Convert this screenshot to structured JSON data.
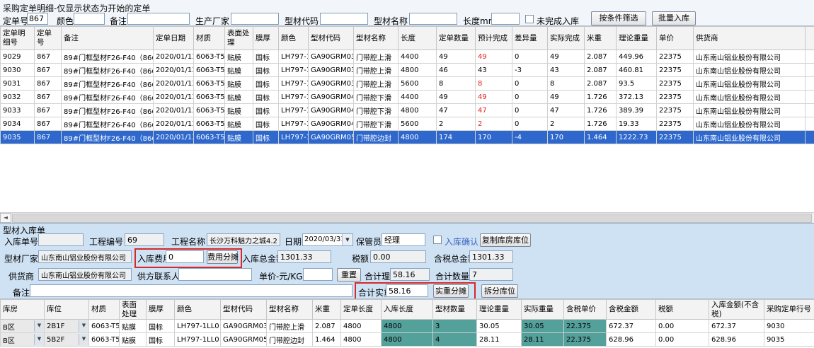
{
  "title": "采购定单明细-仅显示状态为开始的定单",
  "icons": {
    "dropdown": "▼",
    "scroll_left": "◄"
  },
  "filter": {
    "fields": [
      {
        "label": "定单号",
        "value": "867"
      },
      {
        "label": "颜色",
        "value": ""
      },
      {
        "label": "备注",
        "value": ""
      },
      {
        "label": "生产厂家",
        "value": ""
      },
      {
        "label": "型材代码",
        "value": ""
      },
      {
        "label": "型材名称",
        "value": ""
      },
      {
        "label": "长度mm",
        "value": ""
      }
    ],
    "unfinished_checkbox": "未完成入库",
    "filter_button": "按条件筛选",
    "batch_button": "批量入库"
  },
  "order_grid": {
    "columns": [
      "定单明细号",
      "定单号",
      "备注",
      "定单日期",
      "材质",
      "表面处理",
      "膜厚",
      "颜色",
      "型材代码",
      "型材名称",
      "长度",
      "定单数量",
      "预计完成",
      "差异量",
      "实际完成",
      "米重",
      "理论重量",
      "单价",
      "供货商",
      ""
    ],
    "widths": [
      48,
      38,
      130,
      57,
      44,
      40,
      36,
      42,
      64,
      63,
      54,
      55,
      52,
      50,
      52,
      45,
      57,
      52,
      158,
      13
    ],
    "selected_row": 6,
    "red_cells": {
      "column": 12,
      "rows": [
        0,
        2,
        3,
        4,
        5
      ]
    },
    "rows": [
      [
        "9029",
        "867",
        "89#门框型材F26-F40（866+867）",
        "2020/01/13",
        "6063-T5",
        "贴膜",
        "国标",
        "LH797-1LL0",
        "GA90GRM03",
        "门带腔上滑",
        "4400",
        "49",
        "49",
        "0",
        "49",
        "2.087",
        "449.96",
        "22375",
        "山东南山铝业股份有限公司",
        ""
      ],
      [
        "9030",
        "867",
        "89#门框型材F26-F40（866+867）",
        "2020/01/13",
        "6063-T5",
        "贴膜",
        "国标",
        "LH797-1LL0",
        "GA90GRM03",
        "门带腔上滑",
        "4800",
        "46",
        "43",
        "-3",
        "43",
        "2.087",
        "460.81",
        "22375",
        "山东南山铝业股份有限公司",
        ""
      ],
      [
        "9031",
        "867",
        "89#门框型材F26-F40（866+867）",
        "2020/01/13",
        "6063-T5",
        "贴膜",
        "国标",
        "LH797-1LL0",
        "GA90GRM03",
        "门带腔上滑",
        "5600",
        "8",
        "8",
        "0",
        "8",
        "2.087",
        "93.5",
        "22375",
        "山东南山铝业股份有限公司",
        ""
      ],
      [
        "9032",
        "867",
        "89#门框型材F26-F40（866+867）",
        "2020/01/13",
        "6063-T5",
        "贴膜",
        "国标",
        "LH797-1LL0",
        "GA90GRM04",
        "门带腔下滑",
        "4400",
        "49",
        "49",
        "0",
        "49",
        "1.726",
        "372.13",
        "22375",
        "山东南山铝业股份有限公司",
        ""
      ],
      [
        "9033",
        "867",
        "89#门框型材F26-F40（866+867）",
        "2020/01/13",
        "6063-T5",
        "贴膜",
        "国标",
        "LH797-1LL0",
        "GA90GRM04",
        "门带腔下滑",
        "4800",
        "47",
        "47",
        "0",
        "47",
        "1.726",
        "389.39",
        "22375",
        "山东南山铝业股份有限公司",
        ""
      ],
      [
        "9034",
        "867",
        "89#门框型材F26-F40（866+867）",
        "2020/01/13",
        "6063-T5",
        "贴膜",
        "国标",
        "LH797-1LL0",
        "GA90GRM04",
        "门带腔下滑",
        "5600",
        "2",
        "2",
        "0",
        "2",
        "1.726",
        "19.33",
        "22375",
        "山东南山铝业股份有限公司",
        ""
      ],
      [
        "9035",
        "867",
        "89#门框型材F26-F40（866+867）",
        "2020/01/13",
        "6063-T5",
        "贴膜",
        "国标",
        "LH797-1LL0",
        "GA90GRM05",
        "门带腔边封",
        "4800",
        "174",
        "170",
        "-4",
        "170",
        "1.464",
        "1222.73",
        "22375",
        "山东南山铝业股份有限公司",
        ""
      ]
    ]
  },
  "inbound_form": {
    "group_label": "型材入库单",
    "inbound_no_label": "入库单号",
    "inbound_no_value": "",
    "project_no_label": "工程编号",
    "project_no_value": "69",
    "project_name_label": "工程名称",
    "project_name_value": "长沙万科魅力之城4.2期",
    "date_label": "日期",
    "date_value": "2020/03/31",
    "keeper_label": "保管员",
    "keeper_value": "经理",
    "confirm_label": "入库确认",
    "copy_button": "复制库房库位",
    "factory_label": "型材厂家",
    "factory_value": "山东南山铝业股份有限公司",
    "fee_label": "入库费用",
    "fee_value": "0",
    "fee_button": "费用分摊",
    "total_label": "入库总金额",
    "total_value": "1301.33",
    "tax_label": "税额",
    "tax_value": "0.00",
    "tax_total_label": "含税总金额",
    "tax_total_value": "1301.33",
    "supplier_label": "供货商",
    "supplier_value": "山东南山铝业股份有限公司",
    "contact_label": "供方联系人",
    "contact_value": "",
    "price_label": "单价-元/KG",
    "price_value": "",
    "reset_button": "重置",
    "theory_label": "合计理重",
    "theory_value": "58.16",
    "qty_label": "合计数量",
    "qty_value": "7",
    "remark_label": "备注",
    "remark_value": "",
    "actual_label": "合计实重",
    "actual_value": "58.16",
    "actual_button": "实重分摊",
    "split_button": "拆分库位"
  },
  "inbound_grid": {
    "columns": [
      "库房",
      "库位",
      "材质",
      "表面处理",
      "膜厚",
      "颜色",
      "型材代码",
      "型材名称",
      "米重",
      "定单长度",
      "入库长度",
      "型材数量",
      "理论重量",
      "实际重量",
      "含税单价",
      "含税金额",
      "税额",
      "入库金额(不含税)",
      "采购定单行号"
    ],
    "widths": [
      62,
      63,
      43,
      38,
      40,
      65,
      65,
      65,
      40,
      57,
      73,
      62,
      63,
      60,
      60,
      70,
      75,
      78,
      71
    ],
    "teal_columns": [
      10,
      11,
      13,
      14
    ],
    "combo_columns": [
      0,
      1
    ],
    "rows": [
      [
        "B区",
        "2B1F",
        "6063-T5",
        "贴膜",
        "国标",
        "LH797-1LL0",
        "GA90GRM03",
        "门带腔上滑",
        "2.087",
        "4800",
        "4800",
        "3",
        "30.05",
        "30.05",
        "22.375",
        "672.37",
        "0.00",
        "672.37",
        "9030"
      ],
      [
        "B区",
        "5B2F",
        "6063-T5",
        "贴膜",
        "国标",
        "LH797-1LL0",
        "GA90GRM05",
        "门带腔边封",
        "1.464",
        "4800",
        "4800",
        "4",
        "28.11",
        "28.11",
        "22.375",
        "628.96",
        "0.00",
        "628.96",
        "9035"
      ]
    ]
  }
}
